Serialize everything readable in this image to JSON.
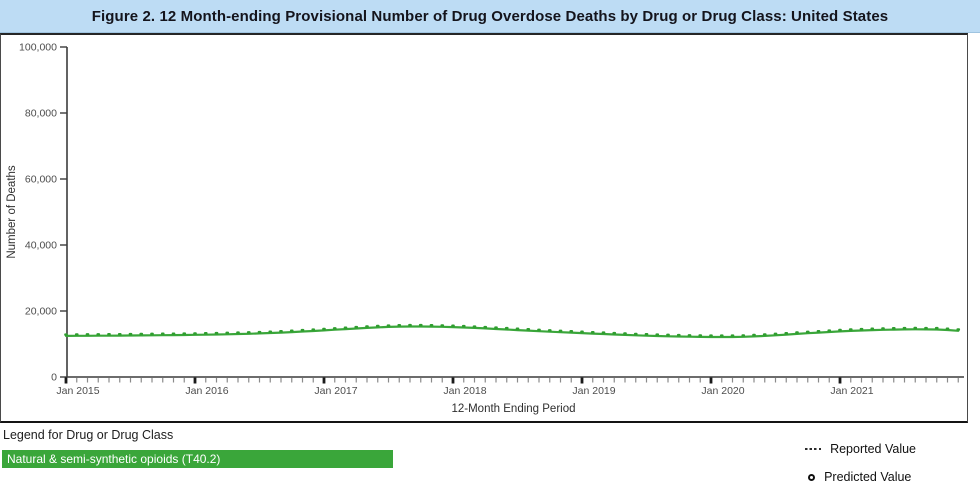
{
  "title": "Figure 2. 12 Month-ending Provisional Number of Drug Overdose Deaths by Drug or Drug Class: United States",
  "colors": {
    "title_bar_bg": "#bddcf4",
    "series_green": "#3aa63a",
    "marker_green": "#2f9e2f",
    "axis": "#3c3c3c",
    "minor_tick": "#8a8a8a",
    "tick_label": "#4d4d4d"
  },
  "chart_data": {
    "type": "line",
    "title": "Figure 2. 12 Month-ending Provisional Number of Drug Overdose Deaths by Drug or Drug Class: United States",
    "xlabel": "12-Month Ending Period",
    "ylabel": "Number of Deaths",
    "ylim": [
      0,
      100000
    ],
    "ytick_values": [
      0,
      20000,
      40000,
      60000,
      80000,
      100000
    ],
    "ytick_labels": [
      "0",
      "20,000",
      "40,000",
      "60,000",
      "80,000",
      "100,000"
    ],
    "xtick_labels": [
      "Jan 2015",
      "Jan 2016",
      "Jan 2017",
      "Jan 2018",
      "Jan 2019",
      "Jan 2020",
      "Jan 2021"
    ],
    "x_start_month": "Jan 2015",
    "x_end_month": "Dec 2021",
    "months_per_major_tick": 12,
    "grid": false,
    "legend_position": "bottom-left",
    "series": [
      {
        "name": "Natural & semi-synthetic opioids (T40.2)",
        "marker": "dash",
        "values": [
          12450,
          12470,
          12490,
          12510,
          12530,
          12560,
          12590,
          12620,
          12650,
          12680,
          12710,
          12740,
          12780,
          12830,
          12890,
          12950,
          13020,
          13100,
          13200,
          13320,
          13460,
          13610,
          13780,
          13950,
          14130,
          14320,
          14510,
          14700,
          14880,
          15040,
          15170,
          15260,
          15310,
          15300,
          15260,
          15200,
          15110,
          15000,
          14870,
          14720,
          14560,
          14390,
          14220,
          14050,
          13890,
          13730,
          13580,
          13440,
          13300,
          13160,
          13020,
          12890,
          12760,
          12640,
          12530,
          12430,
          12340,
          12270,
          12210,
          12160,
          12130,
          12110,
          12120,
          12180,
          12300,
          12460,
          12650,
          12850,
          13060,
          13270,
          13460,
          13650,
          13820,
          13970,
          14100,
          14210,
          14300,
          14370,
          14420,
          14440,
          14420,
          14390,
          14230,
          14000
        ]
      }
    ]
  },
  "legend": {
    "heading": "Legend for Drug or Drug Class",
    "items": [
      {
        "label": "Natural & semi-synthetic opioids (T40.2)",
        "color": "#3aa63a",
        "text_color": "#ffffff"
      }
    ],
    "marker_legend": [
      {
        "symbol": "dash",
        "label": "Reported Value"
      },
      {
        "symbol": "open-circle",
        "label": "Predicted Value"
      }
    ]
  }
}
